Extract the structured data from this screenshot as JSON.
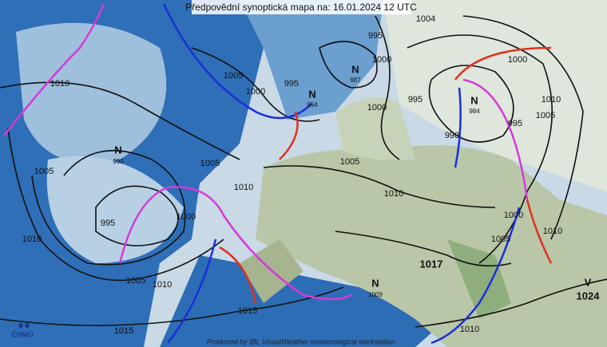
{
  "header": {
    "title": "Předpovědní synoptická mapa na: 16.01.2024 12 UTC"
  },
  "footer": {
    "credit": "Produced by IBL VisualWeather meteorological workstation",
    "logo": "ČHMÚ"
  },
  "centers": [
    {
      "label": "N",
      "pressure": "990"
    },
    {
      "label": "N",
      "pressure": "987"
    },
    {
      "label": "N",
      "pressure": "994"
    },
    {
      "label": "N",
      "pressure": "984"
    },
    {
      "label": "N",
      "pressure": "1009"
    },
    {
      "label": "V",
      "pressure": "1024"
    }
  ],
  "isobar_labels": [
    "1004",
    "1010",
    "1005",
    "1010",
    "995",
    "1000",
    "1005",
    "1010",
    "1005",
    "1010",
    "1015",
    "1015",
    "1005",
    "1000",
    "995",
    "995",
    "1000",
    "1000",
    "995",
    "990",
    "995",
    "1000",
    "1010",
    "1005",
    "1005",
    "1010",
    "1000",
    "1005",
    "1010",
    "1010",
    "1017"
  ]
}
